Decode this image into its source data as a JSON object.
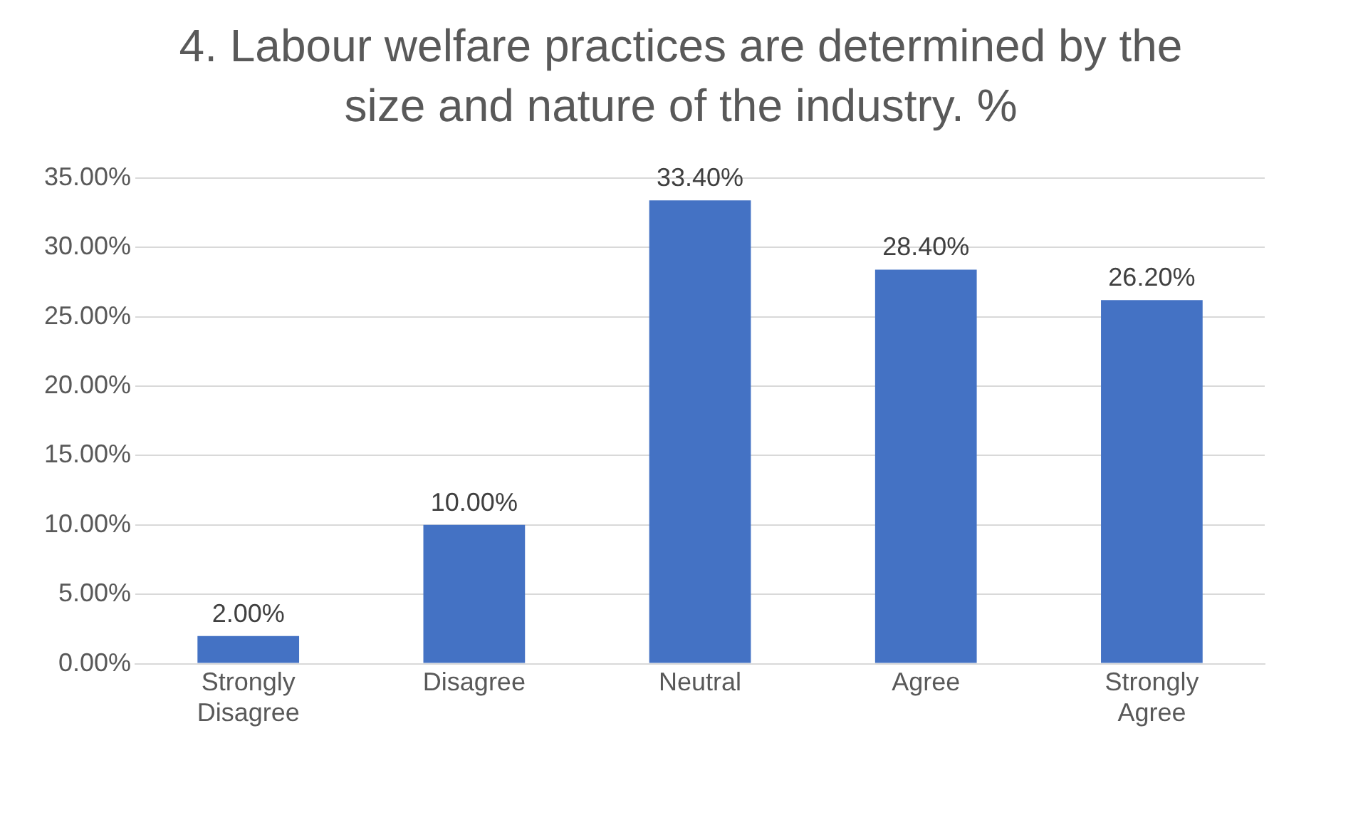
{
  "chart_data": {
    "type": "bar",
    "title": "4. Labour welfare practices are determined by the size and nature of the industry. %",
    "categories": [
      "Strongly Disagree",
      "Disagree",
      "Neutral",
      "Agree",
      "Strongly Agree"
    ],
    "values": [
      2,
      10,
      33.4,
      28.4,
      26.2
    ],
    "value_labels": [
      "2.00%",
      "10.00%",
      "33.40%",
      "28.40%",
      "26.20%"
    ],
    "color": "#4472c4",
    "ylim": [
      0,
      35
    ],
    "yticks": [
      {
        "value": 0,
        "label": "0.00%"
      },
      {
        "value": 5,
        "label": "5.00%"
      },
      {
        "value": 10,
        "label": "10.00%"
      },
      {
        "value": 15,
        "label": "15.00%"
      },
      {
        "value": 20,
        "label": "20.00%"
      },
      {
        "value": 25,
        "label": "25.00%"
      },
      {
        "value": 30,
        "label": "30.00%"
      },
      {
        "value": 35,
        "label": "35.00%"
      }
    ],
    "grid": "y",
    "legend": false
  }
}
